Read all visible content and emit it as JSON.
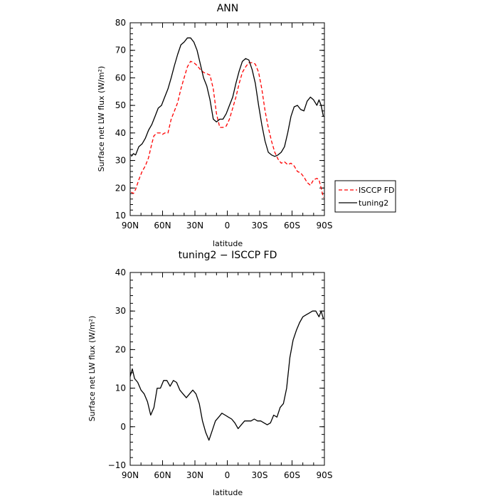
{
  "chart_data": [
    {
      "type": "line",
      "title": "ANN",
      "xlabel": "latitude",
      "ylabel": "Surface net LW flux (W/m²)",
      "xlim": [
        90,
        -90
      ],
      "ylim": [
        10,
        80
      ],
      "x_tick_values": [
        90,
        60,
        30,
        0,
        -30,
        -60,
        -90
      ],
      "x_tick_labels": [
        "90N",
        "60N",
        "30N",
        "0",
        "30S",
        "60S",
        "90S"
      ],
      "y_tick_labels": [
        10,
        20,
        30,
        40,
        50,
        60,
        70,
        80
      ],
      "legend_position": "right",
      "series": [
        {
          "name": "ISCCP FD",
          "color": "#ff0000",
          "style": "dashed",
          "x": [
            89,
            87,
            85,
            82,
            79,
            76,
            73,
            70,
            68,
            65,
            62,
            60,
            58,
            55,
            52,
            49,
            46,
            43,
            40,
            37,
            34,
            31,
            28,
            25,
            22,
            19,
            16,
            13,
            10,
            7,
            4,
            1,
            -2,
            -5,
            -8,
            -11,
            -14,
            -17,
            -20,
            -23,
            -26,
            -29,
            -32,
            -35,
            -38,
            -41,
            -44,
            -47,
            -50,
            -53,
            -56,
            -59,
            -62,
            -65,
            -68,
            -71,
            -74,
            -77,
            -80,
            -83,
            -85,
            -87,
            -89
          ],
          "y": [
            18.5,
            18,
            19.5,
            23,
            26,
            28,
            31,
            36,
            39,
            40,
            40,
            39.5,
            40,
            40,
            45,
            48,
            51,
            56,
            60,
            64,
            66,
            65.5,
            64.5,
            63,
            62,
            61.5,
            61,
            56,
            47,
            42,
            42,
            42.5,
            45,
            49,
            53,
            58,
            62,
            64,
            65.5,
            65.5,
            65,
            62,
            56,
            48,
            42,
            37,
            33,
            30.5,
            29,
            29.5,
            28.5,
            29,
            28,
            26,
            25.5,
            24,
            22,
            21,
            23,
            23.5,
            23,
            20,
            16.5
          ]
        },
        {
          "name": "tuning2",
          "color": "#000000",
          "style": "solid",
          "x": [
            89,
            87,
            85,
            82,
            79,
            76,
            73,
            70,
            67,
            64,
            61,
            58,
            55,
            52,
            49,
            46,
            43,
            40,
            37,
            34,
            31,
            28,
            25,
            22,
            19,
            16,
            13,
            10,
            7,
            4,
            1,
            -2,
            -5,
            -8,
            -11,
            -14,
            -17,
            -20,
            -23,
            -26,
            -29,
            -32,
            -35,
            -38,
            -41,
            -44,
            -47,
            -50,
            -53,
            -56,
            -59,
            -62,
            -65,
            -68,
            -71,
            -74,
            -77,
            -80,
            -83,
            -85,
            -87,
            -89
          ],
          "y": [
            31.5,
            32.5,
            32,
            35,
            36,
            38,
            41,
            43,
            46,
            49,
            50,
            53,
            56,
            60,
            64.5,
            68.5,
            72,
            73,
            74.5,
            74.5,
            73,
            70,
            65,
            60,
            57,
            52,
            45,
            44,
            45,
            45,
            47,
            50,
            53,
            58,
            62.5,
            66,
            67,
            66.5,
            63,
            58,
            50,
            43,
            37,
            33,
            32,
            31.5,
            32,
            33,
            35,
            40,
            46,
            49.5,
            50,
            48.5,
            48,
            51.5,
            53,
            52,
            50,
            52,
            50,
            46
          ]
        }
      ]
    },
    {
      "type": "line",
      "title": "tuning2 − ISCCP FD",
      "xlabel": "latitude",
      "ylabel": "Surface net LW flux (W/m²)",
      "xlim": [
        90,
        -90
      ],
      "ylim": [
        -10,
        40
      ],
      "x_tick_values": [
        90,
        60,
        30,
        0,
        -30,
        -60,
        -90
      ],
      "x_tick_labels": [
        "90N",
        "60N",
        "30N",
        "0",
        "30S",
        "60S",
        "90S"
      ],
      "y_tick_labels": [
        -10,
        0,
        10,
        20,
        30,
        40
      ],
      "series": [
        {
          "color": "#000000",
          "style": "solid",
          "x": [
            90,
            88,
            86,
            83,
            80,
            77,
            74,
            71,
            68,
            65,
            62,
            59,
            56,
            53,
            50,
            47,
            44,
            41,
            38,
            35,
            32,
            29,
            26,
            23,
            20,
            17,
            14,
            11,
            8,
            5,
            2,
            -1,
            -4,
            -7,
            -10,
            -13,
            -16,
            -19,
            -22,
            -25,
            -28,
            -31,
            -34,
            -37,
            -40,
            -43,
            -46,
            -49,
            -52,
            -55,
            -58,
            -61,
            -64,
            -67,
            -70,
            -73,
            -76,
            -79,
            -82,
            -85,
            -87,
            -89
          ],
          "y": [
            13,
            15,
            12.5,
            11.5,
            9.5,
            8.5,
            6.5,
            3,
            5,
            10,
            10,
            12,
            12,
            10.5,
            12,
            11.5,
            9.5,
            8.5,
            7.5,
            8.5,
            9.5,
            8.5,
            6,
            1.5,
            -1.5,
            -3.5,
            -1,
            1.5,
            2.5,
            3.5,
            3,
            2.5,
            2,
            1,
            -0.5,
            0.5,
            1.5,
            1.5,
            1.5,
            2,
            1.5,
            1.5,
            1,
            0.5,
            1,
            3,
            2.5,
            5,
            6,
            10,
            18,
            22.5,
            25,
            27,
            28.5,
            29,
            29.5,
            30,
            30,
            28.5,
            30,
            28
          ]
        }
      ]
    }
  ]
}
